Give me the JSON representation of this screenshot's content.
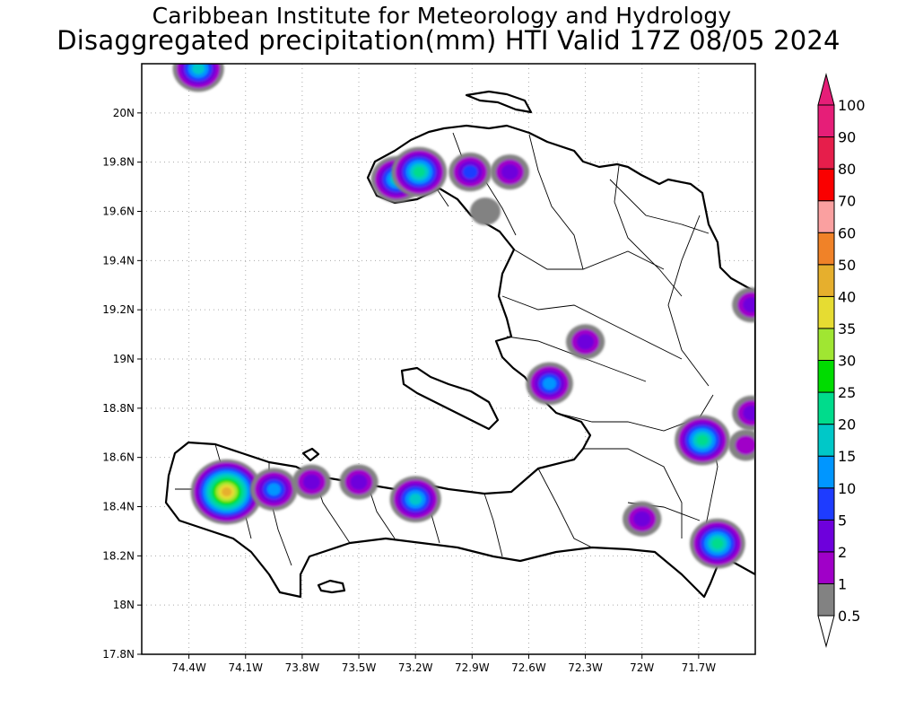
{
  "title": {
    "line1": "Caribbean Institute for Meteorology and Hydrology",
    "line2": "Disaggregated precipitation(mm) HTI Valid 17Z 08/05 2024"
  },
  "map": {
    "lon_range": [
      -74.65,
      -71.4
    ],
    "lat_range": [
      17.8,
      20.2
    ],
    "lon_ticks": [
      {
        "value": -74.4,
        "label": "74.4W"
      },
      {
        "value": -74.1,
        "label": "74.1W"
      },
      {
        "value": -73.8,
        "label": "73.8W"
      },
      {
        "value": -73.5,
        "label": "73.5W"
      },
      {
        "value": -73.2,
        "label": "73.2W"
      },
      {
        "value": -72.9,
        "label": "72.9W"
      },
      {
        "value": -72.6,
        "label": "72.6W"
      },
      {
        "value": -72.3,
        "label": "72.3W"
      },
      {
        "value": -72.0,
        "label": "72W"
      },
      {
        "value": -71.7,
        "label": "71.7W"
      }
    ],
    "lat_ticks": [
      {
        "value": 20.0,
        "label": "20N"
      },
      {
        "value": 19.8,
        "label": "19.8N"
      },
      {
        "value": 19.6,
        "label": "19.6N"
      },
      {
        "value": 19.4,
        "label": "19.4N"
      },
      {
        "value": 19.2,
        "label": "19.2N"
      },
      {
        "value": 19.0,
        "label": "19N"
      },
      {
        "value": 18.8,
        "label": "18.8N"
      },
      {
        "value": 18.6,
        "label": "18.6N"
      },
      {
        "value": 18.4,
        "label": "18.4N"
      },
      {
        "value": 18.2,
        "label": "18.2N"
      },
      {
        "value": 18.0,
        "label": "18N"
      },
      {
        "value": 17.8,
        "label": "17.8N"
      }
    ],
    "grid": "dotted",
    "land_color": "#ffffff",
    "coast_color": "#000000"
  },
  "colorbar": {
    "levels": [
      {
        "label": "0.5",
        "color": "#ffffff"
      },
      {
        "label": "1",
        "color": "#828282"
      },
      {
        "label": "2",
        "color": "#a000c8"
      },
      {
        "label": "5",
        "color": "#6e00dc"
      },
      {
        "label": "10",
        "color": "#1e3cff"
      },
      {
        "label": "15",
        "color": "#0096ff"
      },
      {
        "label": "20",
        "color": "#00c8c8"
      },
      {
        "label": "25",
        "color": "#00dc8c"
      },
      {
        "label": "30",
        "color": "#00dc00"
      },
      {
        "label": "35",
        "color": "#a0e632"
      },
      {
        "label": "40",
        "color": "#e6dc32"
      },
      {
        "label": "50",
        "color": "#e6af2d"
      },
      {
        "label": "60",
        "color": "#f08228"
      },
      {
        "label": "70",
        "color": "#faa0a0"
      },
      {
        "label": "80",
        "color": "#fa0000"
      },
      {
        "label": "90",
        "color": "#e61e4b"
      },
      {
        "label": "100",
        "color": "#e61e78"
      }
    ],
    "top_arrow_color": "#e61e78",
    "bottom_arrow_color": "#ffffff"
  },
  "precip_cells": [
    {
      "lon": -74.35,
      "lat": 20.18,
      "peak": "20"
    },
    {
      "lon": -73.3,
      "lat": 19.73,
      "peak": "20"
    },
    {
      "lon": -73.18,
      "lat": 19.76,
      "peak": "25"
    },
    {
      "lon": -72.91,
      "lat": 19.76,
      "peak": "10"
    },
    {
      "lon": -72.7,
      "lat": 19.76,
      "peak": "5"
    },
    {
      "lon": -72.83,
      "lat": 19.6,
      "peak": "1"
    },
    {
      "lon": -72.3,
      "lat": 19.07,
      "peak": "5"
    },
    {
      "lon": -72.49,
      "lat": 18.9,
      "peak": "15"
    },
    {
      "lon": -74.2,
      "lat": 18.46,
      "peak": "50"
    },
    {
      "lon": -73.95,
      "lat": 18.47,
      "peak": "15"
    },
    {
      "lon": -73.75,
      "lat": 18.5,
      "peak": "5"
    },
    {
      "lon": -73.5,
      "lat": 18.5,
      "peak": "5"
    },
    {
      "lon": -73.2,
      "lat": 18.43,
      "peak": "20"
    },
    {
      "lon": -72.0,
      "lat": 18.35,
      "peak": "5"
    },
    {
      "lon": -71.68,
      "lat": 18.67,
      "peak": "25"
    },
    {
      "lon": -71.6,
      "lat": 18.25,
      "peak": "25"
    },
    {
      "lon": -71.42,
      "lat": 18.78,
      "peak": "5"
    },
    {
      "lon": -71.42,
      "lat": 19.22,
      "peak": "5"
    },
    {
      "lon": -71.45,
      "lat": 18.65,
      "peak": "2"
    }
  ]
}
